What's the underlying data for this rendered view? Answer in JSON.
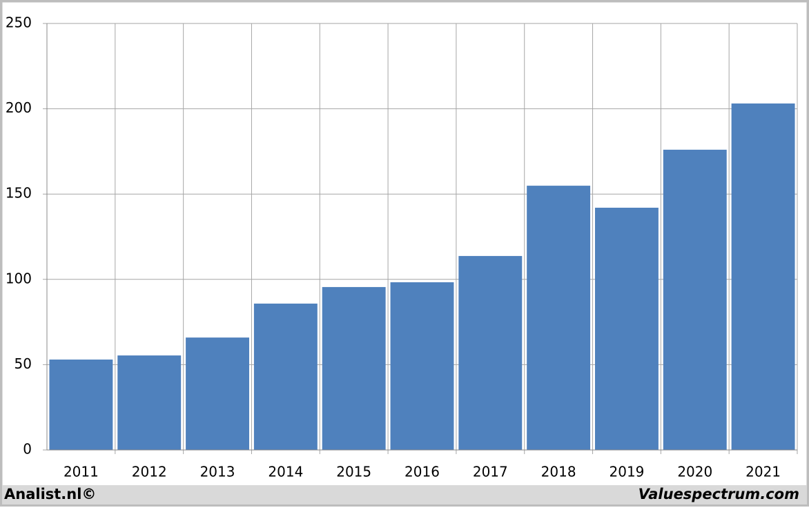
{
  "chart_data": {
    "type": "bar",
    "categories": [
      "2011",
      "2012",
      "2013",
      "2014",
      "2015",
      "2016",
      "2017",
      "2018",
      "2019",
      "2020",
      "2021"
    ],
    "values": [
      53,
      55.4,
      65.9,
      85.8,
      95.5,
      98.3,
      113.7,
      154.9,
      142,
      176,
      203.1
    ],
    "color": "#4f81bd",
    "ylim": [
      0,
      250
    ],
    "yticks": [
      0,
      50,
      100,
      150,
      200,
      250
    ],
    "grid": true
  },
  "footer": {
    "left": "Analist.nl©",
    "right": "Valuespectrum.com"
  }
}
